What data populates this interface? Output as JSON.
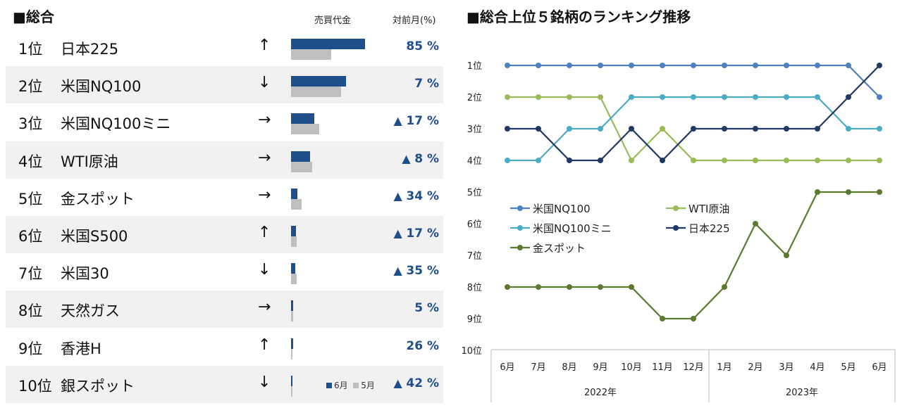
{
  "left": {
    "title": "■総合",
    "col_sales": "売買代金",
    "col_change": "対前月(%)",
    "legend": {
      "jun": "6月",
      "may": "5月",
      "jun_color": "#1f4e8c",
      "may_color": "#bfbfbf"
    },
    "rows": [
      {
        "rank": "1位",
        "name": "日本225",
        "arrow": "↑",
        "jun": 1.0,
        "may": 0.54,
        "up": false,
        "change": "85 %"
      },
      {
        "rank": "2位",
        "name": "米国NQ100",
        "arrow": "↓",
        "jun": 0.74,
        "may": 0.68,
        "up": false,
        "change": "7 %"
      },
      {
        "rank": "3位",
        "name": "米国NQ100ミニ",
        "arrow": "→",
        "jun": 0.31,
        "may": 0.38,
        "up": true,
        "change": "17 %"
      },
      {
        "rank": "4位",
        "name": "WTI原油",
        "arrow": "→",
        "jun": 0.26,
        "may": 0.29,
        "up": true,
        "change": "8 %"
      },
      {
        "rank": "5位",
        "name": "金スポット",
        "arrow": "→",
        "jun": 0.09,
        "may": 0.14,
        "up": true,
        "change": "34 %"
      },
      {
        "rank": "6位",
        "name": "米国S500",
        "arrow": "↑",
        "jun": 0.07,
        "may": 0.08,
        "up": true,
        "change": "17 %"
      },
      {
        "rank": "7位",
        "name": "米国30",
        "arrow": "↓",
        "jun": 0.06,
        "may": 0.08,
        "up": true,
        "change": "35 %"
      },
      {
        "rank": "8位",
        "name": "天然ガス",
        "arrow": "→",
        "jun": 0.025,
        "may": 0.025,
        "up": false,
        "change": "5 %"
      },
      {
        "rank": "9位",
        "name": "香港H",
        "arrow": "↑",
        "jun": 0.025,
        "may": 0.02,
        "up": false,
        "change": "26 %"
      },
      {
        "rank": "10位",
        "name": "銀スポット",
        "arrow": "↓",
        "jun": 0.015,
        "may": 0.02,
        "up": true,
        "change": "42 %"
      }
    ],
    "up_symbol": "▲"
  },
  "chart_data": {
    "type": "line",
    "title": "■総合上位５銘柄のランキング推移",
    "categories": [
      "6月",
      "7月",
      "8月",
      "9月",
      "10月",
      "11月",
      "12月",
      "1月",
      "2月",
      "3月",
      "4月",
      "5月",
      "6月"
    ],
    "year_groups": [
      {
        "label": "2022年",
        "span": 7
      },
      {
        "label": "2023年",
        "span": 6
      }
    ],
    "y_tick_labels": [
      "1位",
      "2位",
      "3位",
      "4位",
      "5位",
      "6位",
      "7位",
      "8位",
      "9位",
      "10位"
    ],
    "ylim": [
      1,
      10
    ],
    "y_inverted": true,
    "series": [
      {
        "name": "米国NQ100",
        "color": "#4f81bd",
        "values": [
          1,
          1,
          1,
          1,
          1,
          1,
          1,
          1,
          1,
          1,
          1,
          1,
          2
        ]
      },
      {
        "name": "WTI原油",
        "color": "#9bbb59",
        "values": [
          2,
          2,
          2,
          2,
          4,
          3,
          4,
          4,
          4,
          4,
          4,
          4,
          4
        ]
      },
      {
        "name": "米国NQ100ミニ",
        "color": "#4bacc6",
        "values": [
          4,
          4,
          3,
          3,
          2,
          2,
          2,
          2,
          2,
          2,
          2,
          3,
          3
        ]
      },
      {
        "name": "日本225",
        "color": "#1f3864",
        "values": [
          3,
          3,
          4,
          4,
          3,
          4,
          3,
          3,
          3,
          3,
          3,
          2,
          1
        ]
      },
      {
        "name": "金スポット",
        "color": "#5a7a2e",
        "values": [
          8,
          8,
          8,
          8,
          8,
          9,
          9,
          8,
          6,
          7,
          5,
          5,
          5
        ]
      }
    ]
  }
}
